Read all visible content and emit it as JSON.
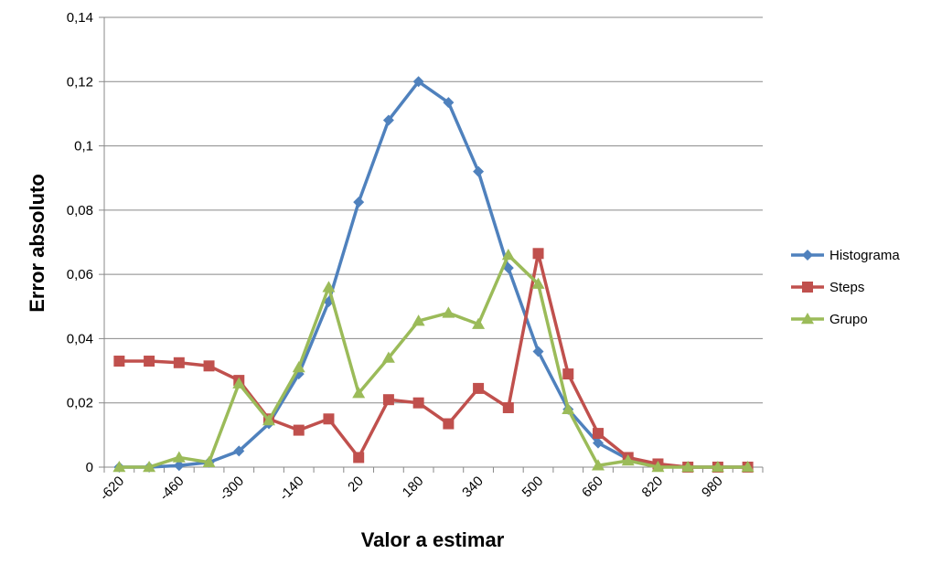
{
  "chart_data": {
    "type": "line",
    "xlabel": "Valor a estimar",
    "ylabel": "Error absoluto",
    "ylim": [
      0,
      0.14
    ],
    "yticks": [
      0,
      0.02,
      0.04,
      0.06,
      0.08,
      0.1,
      0.12,
      0.14
    ],
    "ytick_labels": [
      "0",
      "0,02",
      "0,04",
      "0,06",
      "0,08",
      "0,1",
      "0,12",
      "0,14"
    ],
    "x": [
      -620,
      -540,
      -460,
      -380,
      -300,
      -220,
      -140,
      -60,
      20,
      100,
      180,
      260,
      340,
      420,
      500,
      580,
      660,
      740,
      820,
      900,
      980,
      1060
    ],
    "xtick_labels": [
      "-620",
      "-460",
      "-300",
      "-140",
      "20",
      "180",
      "340",
      "500",
      "660",
      "820",
      "980"
    ],
    "xtick_values": [
      -620,
      -460,
      -300,
      -140,
      20,
      180,
      340,
      500,
      660,
      820,
      980
    ],
    "grid": "horizontal",
    "legend_position": "right",
    "series": [
      {
        "name": "Histograma",
        "color": "#4F81BD",
        "marker": "diamond",
        "values": [
          0,
          0,
          0.0005,
          0.0015,
          0.005,
          0.0135,
          0.029,
          0.0515,
          0.0825,
          0.108,
          0.12,
          0.1135,
          0.092,
          0.062,
          0.036,
          0.018,
          0.0075,
          0.0025,
          0.0005,
          0,
          0,
          0
        ]
      },
      {
        "name": "Steps",
        "color": "#C0504D",
        "marker": "square",
        "values": [
          0.033,
          0.033,
          0.0325,
          0.0315,
          0.027,
          0.015,
          0.0115,
          0.015,
          0.003,
          0.021,
          0.02,
          0.0135,
          0.0245,
          0.0185,
          0.0665,
          0.029,
          0.0105,
          0.003,
          0.001,
          0,
          0,
          0
        ]
      },
      {
        "name": "Grupo",
        "color": "#9BBB59",
        "marker": "triangle",
        "values": [
          0,
          0,
          0.003,
          0.0015,
          0.026,
          0.0145,
          0.031,
          0.056,
          0.023,
          0.034,
          0.0455,
          0.048,
          0.0445,
          0.066,
          0.057,
          0.018,
          0.0005,
          0.002,
          0,
          0,
          0,
          0
        ]
      }
    ]
  }
}
